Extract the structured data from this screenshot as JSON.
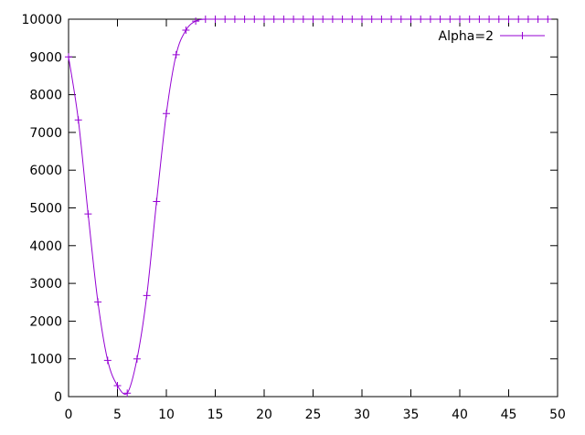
{
  "chart_data": {
    "type": "line",
    "title": "",
    "xlabel": "",
    "ylabel": "",
    "xlim": [
      0,
      50
    ],
    "ylim": [
      0,
      10000
    ],
    "xticks": [
      0,
      5,
      10,
      15,
      20,
      25,
      30,
      35,
      40,
      45,
      50
    ],
    "yticks": [
      0,
      1000,
      2000,
      3000,
      4000,
      5000,
      6000,
      7000,
      8000,
      9000,
      10000
    ],
    "grid": false,
    "legend_position": "top-right",
    "series": [
      {
        "name": "Alpha=2",
        "color": "#9400d3",
        "marker": "plus",
        "x": [
          0,
          1,
          2,
          3,
          4,
          5,
          6,
          7,
          8,
          9,
          10,
          11,
          12,
          13,
          14,
          15,
          16,
          17,
          18,
          19,
          20,
          21,
          22,
          23,
          24,
          25,
          26,
          27,
          28,
          29,
          30,
          31,
          32,
          33,
          34,
          35,
          36,
          37,
          38,
          39,
          40,
          41,
          42,
          43,
          44,
          45,
          46,
          47,
          48,
          49
        ],
        "y": [
          9000,
          7330,
          4840,
          2510,
          960,
          290,
          90,
          1000,
          2680,
          5170,
          7500,
          9060,
          9710,
          9950,
          10000,
          10000,
          10000,
          10000,
          10000,
          10000,
          10000,
          10000,
          10000,
          10000,
          10000,
          10000,
          10000,
          10000,
          10000,
          10000,
          10000,
          10000,
          10000,
          10000,
          10000,
          10000,
          10000,
          10000,
          10000,
          10000,
          10000,
          10000,
          10000,
          10000,
          10000,
          10000,
          10000,
          10000,
          10000,
          10000
        ]
      }
    ]
  }
}
